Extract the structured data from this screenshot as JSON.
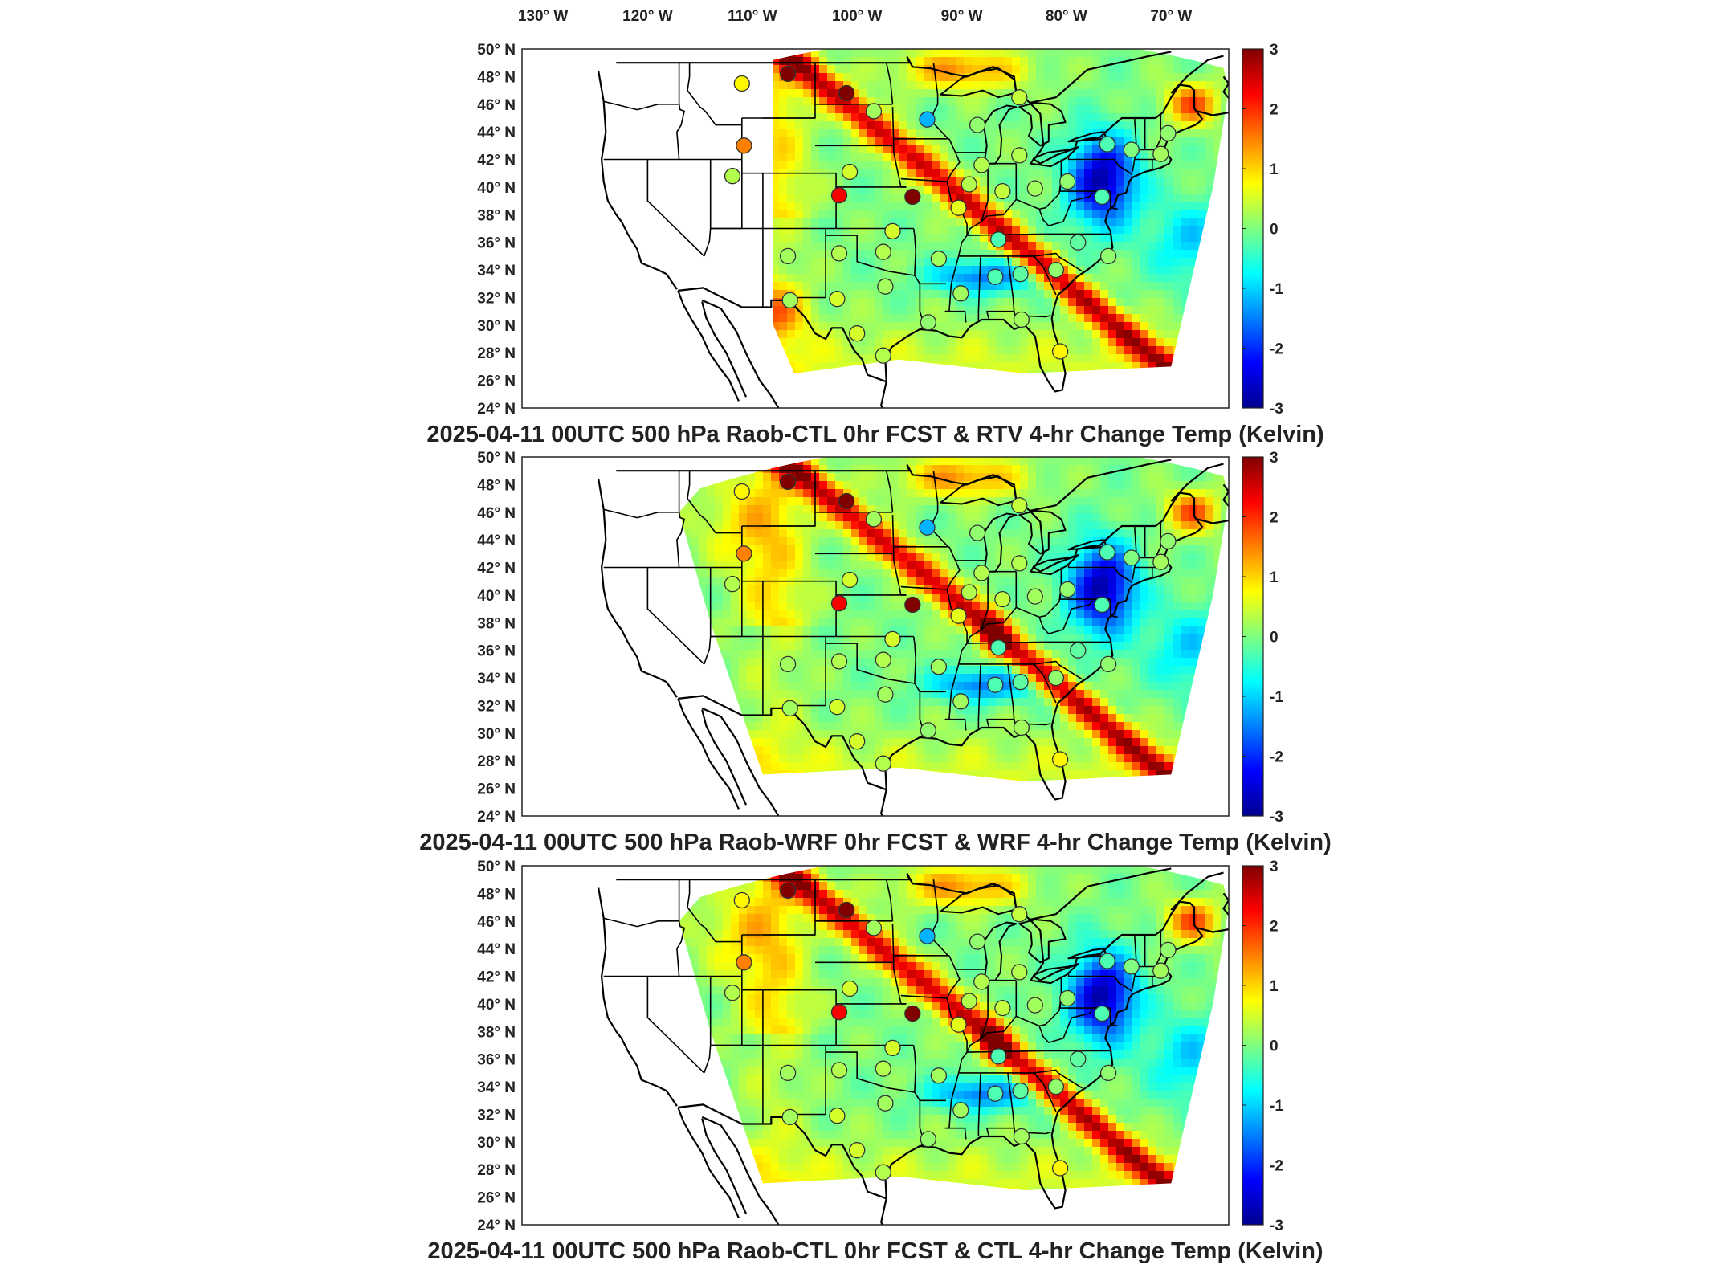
{
  "figure": {
    "top_axis": {
      "lon_ticks": [
        "130° W",
        "120° W",
        "110° W",
        "100° W",
        "90° W",
        "80° W",
        "70° W"
      ],
      "lon_values": [
        -130,
        -120,
        -110,
        -100,
        -90,
        -80,
        -70
      ]
    },
    "lat_ticks": [
      "50° N",
      "48° N",
      "46° N",
      "44° N",
      "42° N",
      "40° N",
      "38° N",
      "36° N",
      "34° N",
      "32° N",
      "30° N",
      "28° N",
      "26° N",
      "24° N"
    ],
    "lat_values": [
      50,
      48,
      46,
      44,
      42,
      40,
      38,
      36,
      34,
      32,
      30,
      28,
      26,
      24
    ],
    "colorbar": {
      "ticks": [
        "3",
        "2",
        "1",
        "0",
        "-1",
        "-2",
        "-3"
      ],
      "range": [
        -3,
        3
      ],
      "colormap": "jet"
    },
    "panels": [
      {
        "title": "2025-04-11 00UTC 500 hPa Raob-CTL 0hr FCST & RTV 4-hr Change Temp (Kelvin)",
        "field": "RTV"
      },
      {
        "title": "2025-04-11 00UTC 500 hPa Raob-WRF 0hr FCST & WRF 4-hr Change Temp (Kelvin)",
        "field": "WRF"
      },
      {
        "title": "2025-04-11 00UTC 500 hPa Raob-CTL 0hr FCST & CTL 4-hr Change Temp (Kelvin)",
        "field": "CTL"
      }
    ],
    "stations_deg": [
      {
        "lon": -111,
        "lat": 47.5,
        "v": 0.8
      },
      {
        "lon": -106.6,
        "lat": 48.2,
        "v": 3.0
      },
      {
        "lon": -101.0,
        "lat": 46.8,
        "v": 3.0
      },
      {
        "lon": -110.8,
        "lat": 43.0,
        "v": 1.5
      },
      {
        "lon": -111.9,
        "lat": 40.8,
        "v": 0.3
      },
      {
        "lon": -98.4,
        "lat": 45.5,
        "v": 0.2
      },
      {
        "lon": -93.3,
        "lat": 44.9,
        "v": -1.2
      },
      {
        "lon": -100.7,
        "lat": 41.1,
        "v": 0.5
      },
      {
        "lon": -101.7,
        "lat": 39.4,
        "v": 2.3
      },
      {
        "lon": -94.7,
        "lat": 39.3,
        "v": 3.0
      },
      {
        "lon": -96.6,
        "lat": 36.8,
        "v": 0.5
      },
      {
        "lon": -97.5,
        "lat": 35.3,
        "v": 0.3
      },
      {
        "lon": -101.7,
        "lat": 35.2,
        "v": 0.3
      },
      {
        "lon": -106.6,
        "lat": 35.0,
        "v": 0.2
      },
      {
        "lon": -97.3,
        "lat": 32.8,
        "v": 0.2
      },
      {
        "lon": -101.9,
        "lat": 31.9,
        "v": 0.5
      },
      {
        "lon": -106.4,
        "lat": 31.8,
        "v": 0.2
      },
      {
        "lon": -100.0,
        "lat": 29.4,
        "v": 0.5
      },
      {
        "lon": -97.5,
        "lat": 27.8,
        "v": 0.3
      },
      {
        "lon": -93.2,
        "lat": 30.2,
        "v": 0.1
      },
      {
        "lon": -92.2,
        "lat": 34.8,
        "v": 0.2
      },
      {
        "lon": -90.3,
        "lat": 38.5,
        "v": 0.6
      },
      {
        "lon": -88.1,
        "lat": 41.6,
        "v": 0.3
      },
      {
        "lon": -89.3,
        "lat": 40.2,
        "v": 0.3
      },
      {
        "lon": -84.5,
        "lat": 42.3,
        "v": 0.3
      },
      {
        "lon": -86.1,
        "lat": 39.7,
        "v": 0.4
      },
      {
        "lon": -88.5,
        "lat": 44.5,
        "v": 0.1
      },
      {
        "lon": -84.5,
        "lat": 46.5,
        "v": 0.4
      },
      {
        "lon": -83.0,
        "lat": 39.9,
        "v": 0.2
      },
      {
        "lon": -86.5,
        "lat": 36.2,
        "v": -0.3
      },
      {
        "lon": -86.8,
        "lat": 33.5,
        "v": -0.3
      },
      {
        "lon": -84.4,
        "lat": 33.7,
        "v": -0.2
      },
      {
        "lon": -81.0,
        "lat": 34.0,
        "v": 0.1
      },
      {
        "lon": -84.3,
        "lat": 30.4,
        "v": 0.2
      },
      {
        "lon": -80.6,
        "lat": 28.1,
        "v": 0.8
      },
      {
        "lon": -78.9,
        "lat": 36.0,
        "v": -0.2
      },
      {
        "lon": -79.9,
        "lat": 40.4,
        "v": 0.1
      },
      {
        "lon": -76.6,
        "lat": 39.3,
        "v": -0.3
      },
      {
        "lon": -73.8,
        "lat": 42.7,
        "v": 0.0
      },
      {
        "lon": -76.1,
        "lat": 43.1,
        "v": -0.3
      },
      {
        "lon": -71.0,
        "lat": 42.4,
        "v": 0.2
      },
      {
        "lon": -70.3,
        "lat": 43.9,
        "v": 0.1
      },
      {
        "lon": -76.0,
        "lat": 35.0,
        "v": 0.1
      },
      {
        "lon": -90.1,
        "lat": 32.3,
        "v": 0.2
      }
    ]
  }
}
